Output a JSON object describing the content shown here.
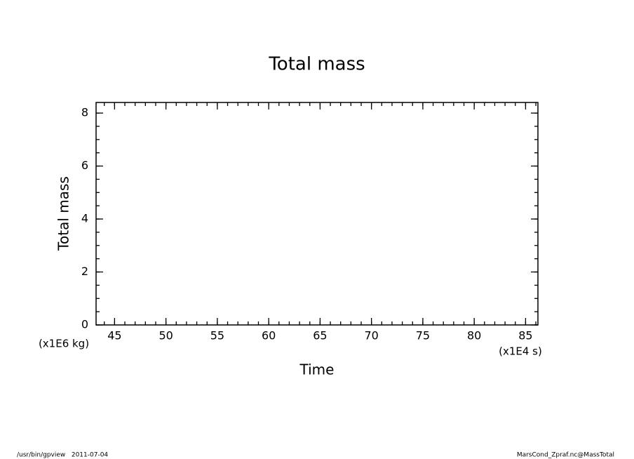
{
  "chart_data": {
    "type": "line",
    "title": "Total mass",
    "x_label": "Time",
    "y_label": "Total mass",
    "x_unit": "(x1E4 s)",
    "y_unit": "(x1E6 kg)",
    "series": [],
    "xlim": [
      43.2,
      86.2
    ],
    "xticks": [
      45,
      50,
      55,
      60,
      65,
      70,
      75,
      80,
      85
    ],
    "x_minor_step": 1,
    "ylim": [
      0,
      8.4
    ],
    "yticks": [
      0,
      2,
      4,
      6,
      8
    ],
    "y_minor_step": 0.5,
    "grid": false,
    "footer_left": "/usr/bin/gpview   2011-07-04",
    "footer_right": "MarsCond_Zpraf.nc@MassTotal"
  }
}
